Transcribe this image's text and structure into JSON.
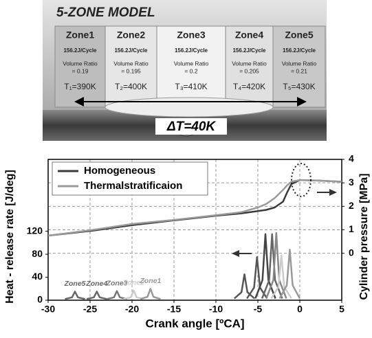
{
  "diagram": {
    "title": "5-ZONE MODEL",
    "delta_t": "ΔT=40K",
    "zones": [
      {
        "name": "Zone1",
        "energy": "156.2J/Cycle",
        "ratio_label": "Volume Ratio",
        "ratio": "= 0.19",
        "temperature": "T₁=390K"
      },
      {
        "name": "Zone2",
        "energy": "156.2J/Cycle",
        "ratio_label": "Volume Ratio",
        "ratio": "= 0.195",
        "temperature": "T₂=400K"
      },
      {
        "name": "Zone3",
        "energy": "156.2J/Cycle",
        "ratio_label": "Volume Ratio",
        "ratio": "= 0.2",
        "temperature": "T₃=410K"
      },
      {
        "name": "Zone4",
        "energy": "156.2J/Cycle",
        "ratio_label": "Volume Ratio",
        "ratio": "= 0.205",
        "temperature": "T₄=420K"
      },
      {
        "name": "Zone5",
        "energy": "156.2J/Cycle",
        "ratio_label": "Volume Ratio",
        "ratio": "= 0.21",
        "temperature": "T₅=430K"
      }
    ]
  },
  "chart_data": {
    "type": "line",
    "x_label": "Crank angle [ºCA]",
    "y_label": "Heat - release rate [J/deg]",
    "y2_label": "Cylinder pressure [MPa]",
    "xlim": [
      -30,
      5
    ],
    "xticks": [
      -30,
      -25,
      -20,
      -15,
      -10,
      -5,
      0,
      5
    ],
    "ylim": [
      0,
      245
    ],
    "yticks": [
      0,
      40,
      80,
      120
    ],
    "y2lim": [
      -2,
      4
    ],
    "y2ticks": [
      0,
      1,
      2,
      3,
      4
    ],
    "grid": true,
    "legend": "upper-left",
    "x": [
      -30,
      -25,
      -20,
      -15,
      -10,
      -7,
      -5,
      -4,
      -3,
      -2,
      -1.5,
      -1,
      0,
      2,
      5
    ],
    "series": [
      {
        "name": "Homogeneous",
        "color": "#3a3a3a",
        "axis": "y2",
        "values": [
          0.75,
          0.95,
          1.2,
          1.4,
          1.6,
          1.7,
          1.8,
          1.85,
          1.95,
          2.2,
          2.6,
          2.95,
          3.12,
          3.1,
          3.05
        ]
      },
      {
        "name": "Thermalstratificaion",
        "color": "#9a9a9a",
        "axis": "y2",
        "values": [
          0.75,
          0.98,
          1.25,
          1.42,
          1.62,
          1.75,
          1.95,
          2.1,
          2.35,
          2.7,
          2.9,
          3.05,
          3.12,
          3.1,
          3.05
        ]
      }
    ],
    "heat_release": [
      {
        "color": "#666666",
        "x": [
          -28,
          -27.15,
          -26.8,
          -26.45,
          -25.6
        ],
        "values": [
          2,
          5,
          15,
          5,
          2
        ]
      },
      {
        "color": "#666666",
        "x": [
          -25.4,
          -24.55,
          -24.2,
          -23.85,
          -23
        ],
        "values": [
          2,
          5,
          15,
          5,
          2
        ]
      },
      {
        "color": "#777777",
        "x": [
          -23,
          -22.15,
          -21.8,
          -21.45,
          -20.6
        ],
        "values": [
          2,
          5,
          16,
          5,
          2
        ]
      },
      {
        "color": "#cccccc",
        "x": [
          -21,
          -20.15,
          -19.8,
          -19.45,
          -18.6
        ],
        "values": [
          2,
          5,
          17,
          5,
          2
        ]
      },
      {
        "color": "#999999",
        "x": [
          -19,
          -18.15,
          -17.8,
          -17.45,
          -16.6
        ],
        "values": [
          2,
          6,
          20,
          6,
          2
        ]
      },
      {
        "color": "#555555",
        "x": [
          -7.8,
          -6.95,
          -6.6,
          -6.25,
          -5.4
        ],
        "values": [
          3,
          14,
          45,
          14,
          3
        ]
      },
      {
        "color": "#555555",
        "x": [
          -6.3,
          -5.45,
          -5.1,
          -4.75,
          -3.9
        ],
        "values": [
          3,
          22,
          75,
          22,
          3
        ]
      },
      {
        "color": "#444444",
        "x": [
          -5.3,
          -4.45,
          -4.1,
          -3.75,
          -2.9
        ],
        "values": [
          3,
          35,
          115,
          35,
          3
        ]
      },
      {
        "color": "#666666",
        "x": [
          -4.5,
          -3.65,
          -3.3,
          -2.95,
          -2.1
        ],
        "values": [
          3,
          35,
          115,
          35,
          3
        ]
      },
      {
        "color": "#888888",
        "x": [
          -4,
          -3.15,
          -2.8,
          -2.45,
          -1.6
        ],
        "values": [
          3,
          35,
          117,
          35,
          3
        ]
      },
      {
        "color": "#cccccc",
        "x": [
          -3.4,
          -2.55,
          -2.2,
          -1.85,
          -1
        ],
        "values": [
          3,
          23,
          78,
          23,
          3
        ]
      },
      {
        "color": "#999999",
        "x": [
          -2.4,
          -1.55,
          -1.2,
          -0.85,
          0
        ],
        "values": [
          3,
          26,
          88,
          26,
          3
        ]
      }
    ],
    "annotations": [
      "Zone5",
      "Zone4",
      "Zone3",
      "Zone2",
      "Zone1"
    ]
  }
}
